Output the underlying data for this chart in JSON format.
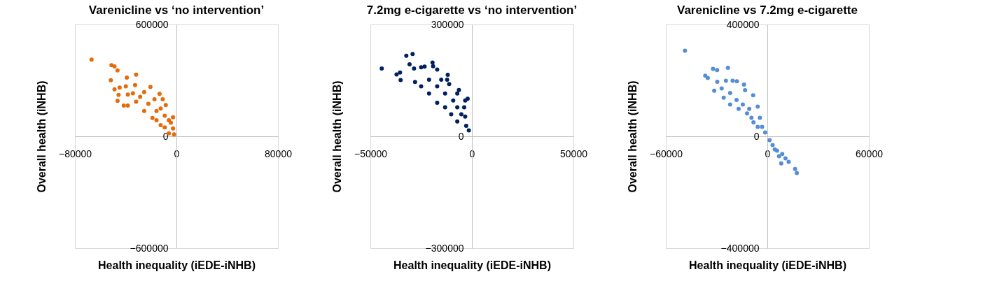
{
  "chart_data": [
    {
      "type": "scatter",
      "title": "Varenicline vs ‘no intervention’",
      "xlabel": "Health inequality (iEDE-iNHB)",
      "ylabel": "Overall health (iNHB)",
      "color": "#e46c0a",
      "marker": "circle",
      "xlim": [
        -80000,
        80000
      ],
      "ylim": [
        -600000,
        600000
      ],
      "xticks": [
        -80000,
        0,
        80000
      ],
      "yticks": [
        -600000,
        0,
        600000
      ],
      "x": [
        -66900,
        -51200,
        -48800,
        -46400,
        -51700,
        -48800,
        -45600,
        -46400,
        -41500,
        -38300,
        -39100,
        -31800,
        -32600,
        -20500,
        -13300,
        -10800,
        -8400,
        -2700,
        -1900,
        -2700,
        -6000,
        -12400,
        -18900,
        -25400,
        -31800,
        -38300,
        -44800,
        -22100,
        -15700,
        -9200,
        -28600,
        -17300,
        -25400,
        -9200,
        -6000,
        -15700,
        -34300,
        -39900,
        -12400,
        -4400
      ],
      "values": [
        412000,
        382000,
        375000,
        353000,
        301000,
        252000,
        222000,
        190000,
        165000,
        165000,
        315000,
        331000,
        275000,
        265000,
        228000,
        199000,
        168000,
        102000,
        10000,
        42000,
        86000,
        60000,
        98000,
        136000,
        186000,
        224000,
        262000,
        174000,
        136000,
        111000,
        212000,
        199000,
        237000,
        48000,
        16000,
        86000,
        231000,
        268000,
        149000,
        73000
      ]
    },
    {
      "type": "scatter",
      "title": "7.2mg e-cigarette vs ‘no intervention’",
      "xlabel": "Health inequality (iEDE-iNHB)",
      "ylabel": "Overall health (iNHB)",
      "color": "#002060",
      "marker": "circle",
      "xlim": [
        -50000,
        50000
      ],
      "ylim": [
        -300000,
        300000
      ],
      "xticks": [
        -50000,
        0,
        50000
      ],
      "yticks": [
        -300000,
        0,
        300000
      ],
      "x": [
        -44400,
        -32300,
        -29200,
        -37100,
        -35400,
        -35100,
        -30700,
        -28500,
        -25000,
        -23300,
        -19400,
        -19100,
        -17100,
        -11900,
        -6400,
        -2100,
        -1500,
        -2800,
        -3300,
        -3800,
        -7200,
        -10200,
        -13200,
        -17100,
        -21100,
        -25000,
        -28000,
        -17100,
        -13200,
        -9200,
        -7200,
        -15100,
        -11200,
        -5200,
        -21100,
        -7200,
        -12200,
        -3300
      ],
      "values": [
        182000,
        216000,
        221000,
        166000,
        171000,
        151000,
        193000,
        182000,
        185000,
        187000,
        198000,
        188000,
        179000,
        165000,
        124000,
        101000,
        16000,
        28000,
        53000,
        78000,
        40000,
        59000,
        78000,
        90000,
        115000,
        134000,
        146000,
        134000,
        115000,
        96000,
        78000,
        152000,
        140000,
        59000,
        152000,
        115000,
        152000,
        96000
      ]
    },
    {
      "type": "scatter",
      "title": "Varenicline vs 7.2mg e-cigarette",
      "xlabel": "Health inequality (iEDE-iNHB)",
      "ylabel": "Overall health (iNHB)",
      "color": "#558ed5",
      "marker": "circle",
      "xlim": [
        -60000,
        60000
      ],
      "ylim": [
        -400000,
        400000
      ],
      "xticks": [
        -60000,
        0,
        60000
      ],
      "yticks": [
        -400000,
        0,
        400000
      ],
      "x": [
        -48700,
        -36700,
        -35200,
        -32100,
        -29700,
        -23300,
        -31400,
        -29600,
        -24500,
        -20500,
        -18000,
        -13800,
        -13200,
        -8400,
        -5700,
        -4400,
        -3100,
        -1300,
        1300,
        3100,
        5700,
        8800,
        12600,
        16400,
        17400,
        8200,
        10700,
        4400,
        -9400,
        -12000,
        -17000,
        -22000,
        -25800,
        -18200,
        -14500,
        -8200,
        -5700,
        -22000,
        -27000,
        -10700,
        6900
      ],
      "values": [
        306000,
        217000,
        209000,
        241000,
        237000,
        245000,
        163000,
        195000,
        199000,
        199000,
        197000,
        185000,
        165000,
        147000,
        106000,
        66000,
        34000,
        14000,
        -14000,
        -31000,
        -51000,
        -63000,
        -91000,
        -117000,
        -131000,
        -97000,
        -79000,
        -47000,
        66000,
        82000,
        98000,
        114000,
        138000,
        130000,
        114000,
        50000,
        34000,
        155000,
        171000,
        98000,
        -71000
      ]
    }
  ]
}
